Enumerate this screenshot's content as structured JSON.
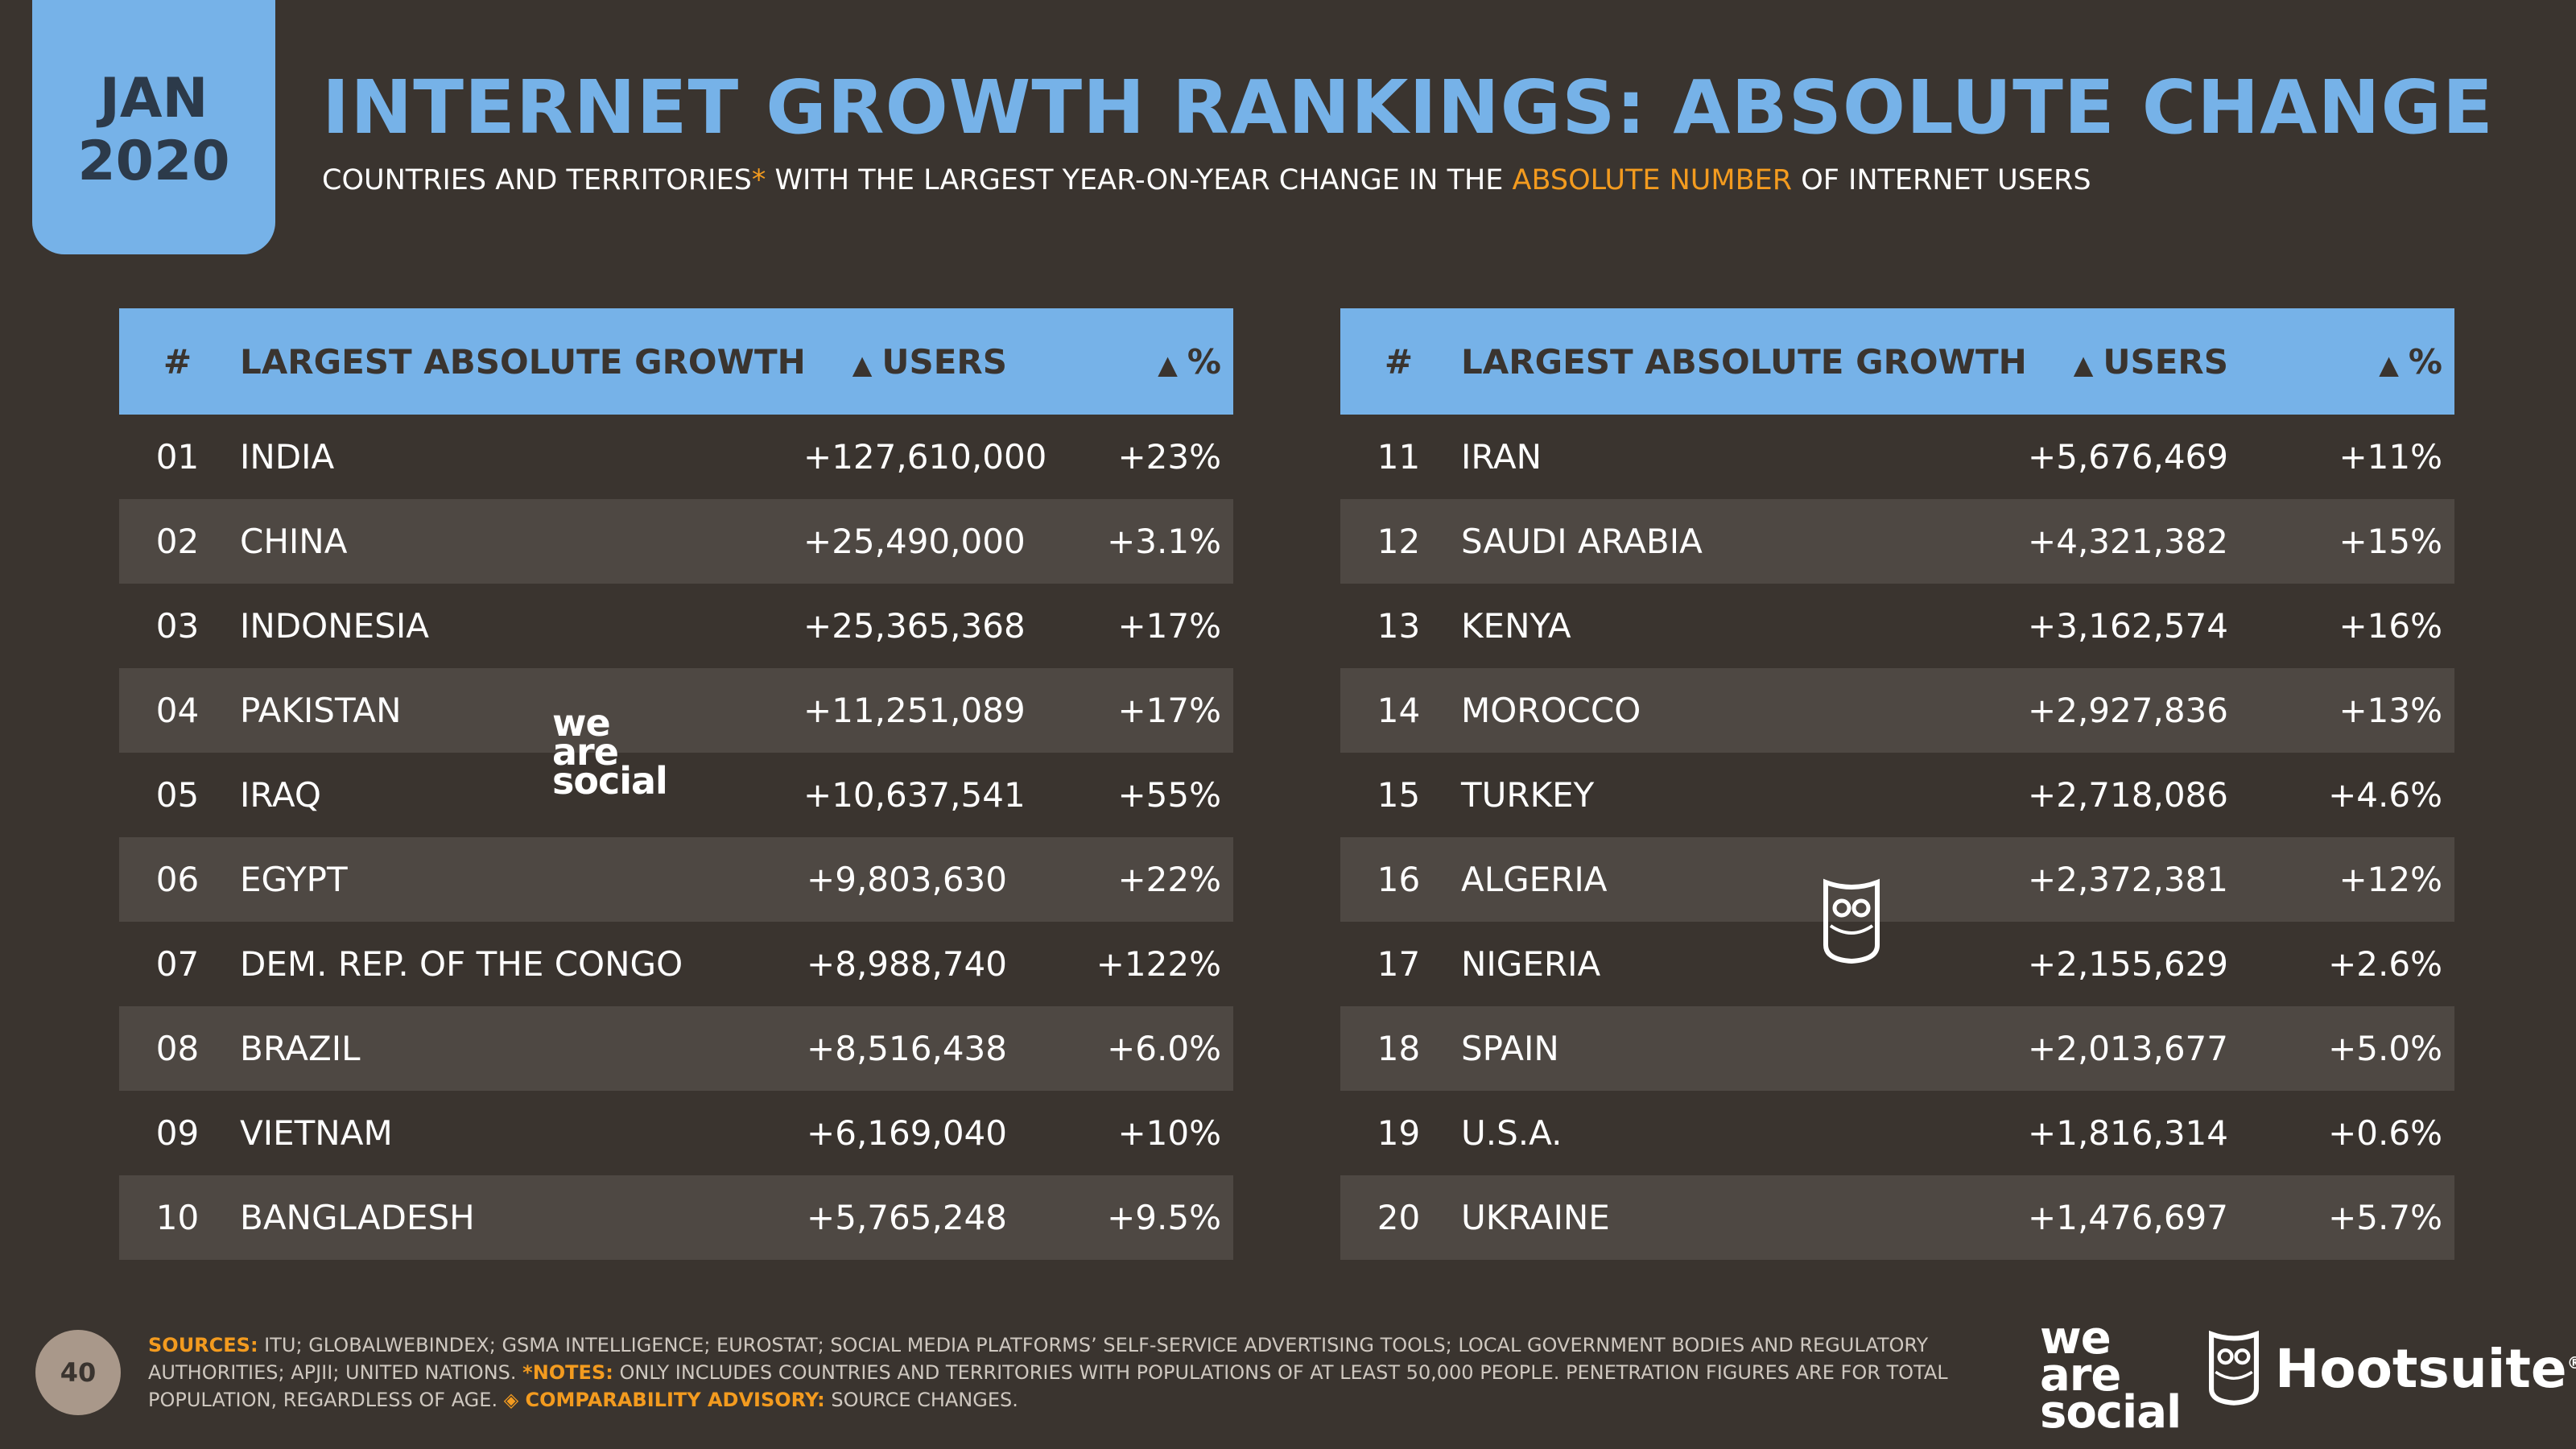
{
  "badge": {
    "month": "JAN",
    "year": "2020"
  },
  "title": "INTERNET GROWTH RANKINGS: ABSOLUTE CHANGE",
  "subtitle": {
    "part1": "COUNTRIES AND TERRITORIES",
    "asterisk": "*",
    "part2": " WITH THE LARGEST YEAR-ON-YEAR CHANGE IN THE ",
    "highlight": "ABSOLUTE NUMBER",
    "part3": " OF INTERNET USERS"
  },
  "table_headers": {
    "num": "#",
    "name": "LARGEST ABSOLUTE GROWTH",
    "users": "USERS",
    "pct": "%",
    "triangle": "▲"
  },
  "left_rows": [
    {
      "num": "01",
      "name": "INDIA",
      "users": "+127,610,000",
      "pct": "+23%"
    },
    {
      "num": "02",
      "name": "CHINA",
      "users": "+25,490,000",
      "pct": "+3.1%"
    },
    {
      "num": "03",
      "name": "INDONESIA",
      "users": "+25,365,368",
      "pct": "+17%"
    },
    {
      "num": "04",
      "name": "PAKISTAN",
      "users": "+11,251,089",
      "pct": "+17%"
    },
    {
      "num": "05",
      "name": "IRAQ",
      "users": "+10,637,541",
      "pct": "+55%"
    },
    {
      "num": "06",
      "name": "EGYPT",
      "users": "+9,803,630",
      "pct": "+22%"
    },
    {
      "num": "07",
      "name": "DEM. REP. OF THE CONGO",
      "users": "+8,988,740",
      "pct": "+122%"
    },
    {
      "num": "08",
      "name": "BRAZIL",
      "users": "+8,516,438",
      "pct": "+6.0%"
    },
    {
      "num": "09",
      "name": "VIETNAM",
      "users": "+6,169,040",
      "pct": "+10%"
    },
    {
      "num": "10",
      "name": "BANGLADESH",
      "users": "+5,765,248",
      "pct": "+9.5%"
    }
  ],
  "right_rows": [
    {
      "num": "11",
      "name": "IRAN",
      "users": "+5,676,469",
      "pct": "+11%"
    },
    {
      "num": "12",
      "name": "SAUDI ARABIA",
      "users": "+4,321,382",
      "pct": "+15%"
    },
    {
      "num": "13",
      "name": "KENYA",
      "users": "+3,162,574",
      "pct": "+16%"
    },
    {
      "num": "14",
      "name": "MOROCCO",
      "users": "+2,927,836",
      "pct": "+13%"
    },
    {
      "num": "15",
      "name": "TURKEY",
      "users": "+2,718,086",
      "pct": "+4.6%"
    },
    {
      "num": "16",
      "name": "ALGERIA",
      "users": "+2,372,381",
      "pct": "+12%"
    },
    {
      "num": "17",
      "name": "NIGERIA",
      "users": "+2,155,629",
      "pct": "+2.6%"
    },
    {
      "num": "18",
      "name": "SPAIN",
      "users": "+2,013,677",
      "pct": "+5.0%"
    },
    {
      "num": "19",
      "name": "U.S.A.",
      "users": "+1,816,314",
      "pct": "+0.6%"
    },
    {
      "num": "20",
      "name": "UKRAINE",
      "users": "+1,476,697",
      "pct": "+5.7%"
    }
  ],
  "footer": {
    "page": "40",
    "sources_label": "SOURCES:",
    "sources_text": " ITU; GLOBALWEBINDEX; GSMA INTELLIGENCE; EUROSTAT; SOCIAL MEDIA PLATFORMS’ SELF-SERVICE ADVERTISING TOOLS; LOCAL GOVERNMENT BODIES AND REGULATORY AUTHORITIES; APJII; UNITED NATIONS. ",
    "notes_label": "*NOTES:",
    "notes_text": " ONLY INCLUDES COUNTRIES AND TERRITORIES WITH POPULATIONS OF AT LEAST 50,000 PEOPLE. PENETRATION FIGURES ARE FOR TOTAL POPULATION, REGARDLESS OF AGE. ",
    "advisory_label": "◈ COMPARABILITY ADVISORY:",
    "advisory_text": " SOURCE CHANGES."
  },
  "logos": {
    "were_line1": "we",
    "were_line2": "are",
    "were_line3": "social",
    "hootsuite": "Hootsuite",
    "reg": "®"
  },
  "colors": {
    "accent_blue": "#76b2e8",
    "accent_orange": "#f39b1f",
    "background": "#3a342f",
    "row_alt": "#4e4843"
  }
}
